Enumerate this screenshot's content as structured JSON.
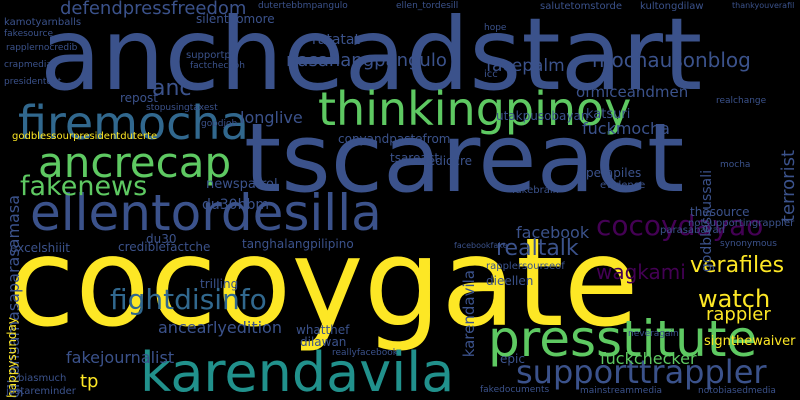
{
  "background": "#000000",
  "words": [
    {
      "text": "cocoygate",
      "weight": 1.0,
      "color": "#fde725",
      "vertical": false
    },
    {
      "text": "ancheadstart",
      "weight": 0.95,
      "color": "#3b528b",
      "vertical": false
    },
    {
      "text": "tscareact",
      "weight": 0.9,
      "color": "#3b528b",
      "vertical": false
    },
    {
      "text": "karendavila",
      "weight": 0.62,
      "color": "#21918c",
      "vertical": false
    },
    {
      "text": "thinkingpinoy",
      "weight": 0.55,
      "color": "#5ec962",
      "vertical": false
    },
    {
      "text": "presstitute",
      "weight": 0.55,
      "color": "#5ec962",
      "vertical": false
    },
    {
      "text": "ellentordesilla",
      "weight": 0.5,
      "color": "#3b528b",
      "vertical": false
    },
    {
      "text": "firemocha",
      "weight": 0.48,
      "color": "#31688e",
      "vertical": false
    },
    {
      "text": "ancrecap",
      "weight": 0.46,
      "color": "#5ec962",
      "vertical": false
    },
    {
      "text": "supporttrappler",
      "weight": 0.4,
      "color": "#3b528b",
      "vertical": false
    },
    {
      "text": "cocoydayao",
      "weight": 0.35,
      "color": "#440154",
      "vertical": false
    },
    {
      "text": "fakenews",
      "weight": 0.33,
      "color": "#5ec962",
      "vertical": false
    },
    {
      "text": "fightdisinfo",
      "weight": 0.33,
      "color": "#31688e",
      "vertical": false
    },
    {
      "text": "mochausonblog",
      "weight": 0.25,
      "color": "#3b528b",
      "vertical": false
    },
    {
      "text": "nasanangpangulo",
      "weight": 0.24,
      "color": "#3b528b",
      "vertical": false
    },
    {
      "text": "defendpressfreedom",
      "weight": 0.22,
      "color": "#3b528b",
      "vertical": false
    },
    {
      "text": "realtalk",
      "weight": 0.24,
      "color": "#3b528b",
      "vertical": false
    },
    {
      "text": "watch",
      "weight": 0.24,
      "color": "#fde725",
      "vertical": false
    },
    {
      "text": "verafiles",
      "weight": 0.22,
      "color": "#fde725",
      "vertical": false
    },
    {
      "text": "wagkami",
      "weight": 0.2,
      "color": "#440154",
      "vertical": false
    },
    {
      "text": "du30bbm",
      "weight": 0.16,
      "color": "#3b528b",
      "vertical": false
    },
    {
      "text": "anc",
      "weight": 0.2,
      "color": "#3b528b",
      "vertical": false
    },
    {
      "text": "longlive",
      "weight": 0.16,
      "color": "#3b528b",
      "vertical": false
    },
    {
      "text": "facepalm",
      "weight": 0.16,
      "color": "#3b528b",
      "vertical": false
    },
    {
      "text": "ratatat",
      "weight": 0.14,
      "color": "#3b528b",
      "vertical": false
    },
    {
      "text": "facebook",
      "weight": 0.16,
      "color": "#3b528b",
      "vertical": false
    },
    {
      "text": "fuckmocha",
      "weight": 0.15,
      "color": "#3b528b",
      "vertical": false
    },
    {
      "text": "ofmiceandmen",
      "weight": 0.14,
      "color": "#3b528b",
      "vertical": false
    },
    {
      "text": "fuckchecker",
      "weight": 0.16,
      "color": "#5ec962",
      "vertical": false
    },
    {
      "text": "rappler",
      "weight": 0.18,
      "color": "#fde725",
      "vertical": false
    },
    {
      "text": "fakejournalist",
      "weight": 0.15,
      "color": "#3b528b",
      "vertical": false
    },
    {
      "text": "ancearlyedition",
      "weight": 0.15,
      "color": "#3b528b",
      "vertical": false
    },
    {
      "text": "tp",
      "weight": 0.15,
      "color": "#fde725",
      "vertical": false
    },
    {
      "text": "newspatrol",
      "weight": 0.12,
      "color": "#3b528b",
      "vertical": false
    },
    {
      "text": "repost",
      "weight": 0.11,
      "color": "#3b528b",
      "vertical": false
    },
    {
      "text": "godblessourpresidentduterte",
      "weight": 0.09,
      "color": "#fde725",
      "vertical": false
    },
    {
      "text": "tanghalangpilipino",
      "weight": 0.1,
      "color": "#3b528b",
      "vertical": false
    },
    {
      "text": "gikansamasaparasamasa",
      "weight": 0.12,
      "color": "#3b528b",
      "vertical": true
    },
    {
      "text": "karendavila",
      "weight": 0.1,
      "color": "#3b528b",
      "vertical": true
    },
    {
      "text": "godblessussali",
      "weight": 0.1,
      "color": "#3b528b",
      "vertical": true
    },
    {
      "text": "terrorist",
      "weight": 0.12,
      "color": "#3b528b",
      "vertical": true
    },
    {
      "text": "signthewaiver",
      "weight": 0.11,
      "color": "#fde725",
      "vertical": false
    },
    {
      "text": "utakpusobayan",
      "weight": 0.1,
      "color": "#3b528b",
      "vertical": false
    },
    {
      "text": "copyandpastefrom",
      "weight": 0.1,
      "color": "#3b528b",
      "vertical": false
    },
    {
      "text": "tsareact",
      "weight": 0.1,
      "color": "#3b528b",
      "vertical": false
    },
    {
      "text": "happysunday",
      "weight": 0.09,
      "color": "#fde725",
      "vertical": true
    },
    {
      "text": "silentnomore",
      "weight": 0.09,
      "color": "#3b528b",
      "vertical": false
    },
    {
      "text": "kamotyarnballs",
      "weight": 0.08,
      "color": "#3b528b",
      "vertical": false
    },
    {
      "text": "thesource",
      "weight": 0.09,
      "color": "#3b528b",
      "vertical": false
    },
    {
      "text": "notsupportingrappler",
      "weight": 0.06,
      "color": "#3b528b",
      "vertical": false
    },
    {
      "text": "thankyouverafil",
      "weight": 0.06,
      "color": "#3b528b",
      "vertical": false
    },
    {
      "text": "salutetomstorde",
      "weight": 0.06,
      "color": "#3b528b",
      "vertical": false
    },
    {
      "text": "kultongdilaw",
      "weight": 0.06,
      "color": "#3b528b",
      "vertical": false
    },
    {
      "text": "dutertebbmpangulo",
      "weight": 0.05,
      "color": "#3b528b",
      "vertical": false
    },
    {
      "text": "ellen_tordesill",
      "weight": 0.05,
      "color": "#3b528b",
      "vertical": false
    },
    {
      "text": "dieellen",
      "weight": 0.07,
      "color": "#3b528b",
      "vertical": false
    },
    {
      "text": "rapplersourseof",
      "weight": 0.07,
      "color": "#3b528b",
      "vertical": false
    },
    {
      "text": "fakebrain",
      "weight": 0.07,
      "color": "#3b528b",
      "vertical": false
    },
    {
      "text": "mediocre",
      "weight": 0.07,
      "color": "#3b528b",
      "vertical": false
    },
    {
      "text": "excelshiiit",
      "weight": 0.08,
      "color": "#3b528b",
      "vertical": false
    },
    {
      "text": "crediblefactche",
      "weight": 0.08,
      "color": "#3b528b",
      "vertical": false
    },
    {
      "text": "trilling",
      "weight": 0.08,
      "color": "#3b528b",
      "vertical": false
    },
    {
      "text": "whatthef",
      "weight": 0.08,
      "color": "#3b528b",
      "vertical": false
    },
    {
      "text": "dilawan",
      "weight": 0.07,
      "color": "#3b528b",
      "vertical": false
    },
    {
      "text": "epic",
      "weight": 0.07,
      "color": "#3b528b",
      "vertical": false
    },
    {
      "text": "neveragain",
      "weight": 0.06,
      "color": "#3b528b",
      "vertical": false
    },
    {
      "text": "mocha",
      "weight": 0.06,
      "color": "#3b528b",
      "vertical": false
    },
    {
      "text": "perapiles",
      "weight": 0.08,
      "color": "#3b528b",
      "vertical": false
    },
    {
      "text": "katsuri",
      "weight": 0.08,
      "color": "#3b528b",
      "vertical": false
    },
    {
      "text": "du30",
      "weight": 0.08,
      "color": "#3b528b",
      "vertical": false
    },
    {
      "text": "biasmuch",
      "weight": 0.07,
      "color": "#3b528b",
      "vertical": false
    },
    {
      "text": "justareminder",
      "weight": 0.07,
      "color": "#3b528b",
      "vertical": false
    },
    {
      "text": "mainstreammedia",
      "weight": 0.07,
      "color": "#3b528b",
      "vertical": false
    },
    {
      "text": "notobiasedmedia",
      "weight": 0.06,
      "color": "#3b528b",
      "vertical": false
    },
    {
      "text": "fakedocuments",
      "weight": 0.06,
      "color": "#3b528b",
      "vertical": false
    },
    {
      "text": "reallyfacebook",
      "weight": 0.06,
      "color": "#3b528b",
      "vertical": false
    },
    {
      "text": "parasabayan",
      "weight": 0.06,
      "color": "#3b528b",
      "vertical": false
    },
    {
      "text": "facebookfake",
      "weight": 0.06,
      "color": "#3b528b",
      "vertical": false
    },
    {
      "text": "fakesource",
      "weight": 0.06,
      "color": "#3b528b",
      "vertical": false
    },
    {
      "text": "rapplernocredib",
      "weight": 0.05,
      "color": "#3b528b",
      "vertical": false
    },
    {
      "text": "crapmedia",
      "weight": 0.05,
      "color": "#3b528b",
      "vertical": false
    },
    {
      "text": "presidentdut",
      "weight": 0.05,
      "color": "#3b528b",
      "vertical": false
    },
    {
      "text": "supportph",
      "weight": 0.06,
      "color": "#3b528b",
      "vertical": false
    },
    {
      "text": "factcheckph",
      "weight": 0.05,
      "color": "#3b528b",
      "vertical": false
    },
    {
      "text": "stopusingtaxest",
      "weight": 0.05,
      "color": "#3b528b",
      "vertical": false
    },
    {
      "text": "goodjob",
      "weight": 0.05,
      "color": "#3b528b",
      "vertical": false
    },
    {
      "text": "icc",
      "weight": 0.06,
      "color": "#3b528b",
      "vertical": false
    },
    {
      "text": "hope",
      "weight": 0.05,
      "color": "#3b528b",
      "vertical": false
    },
    {
      "text": "evidence",
      "weight": 0.05,
      "color": "#3b528b",
      "vertical": false
    },
    {
      "text": "realchange",
      "weight": 0.05,
      "color": "#3b528b",
      "vertical": false
    },
    {
      "text": "synonymous",
      "weight": 0.05,
      "color": "#3b528b",
      "vertical": false
    }
  ]
}
